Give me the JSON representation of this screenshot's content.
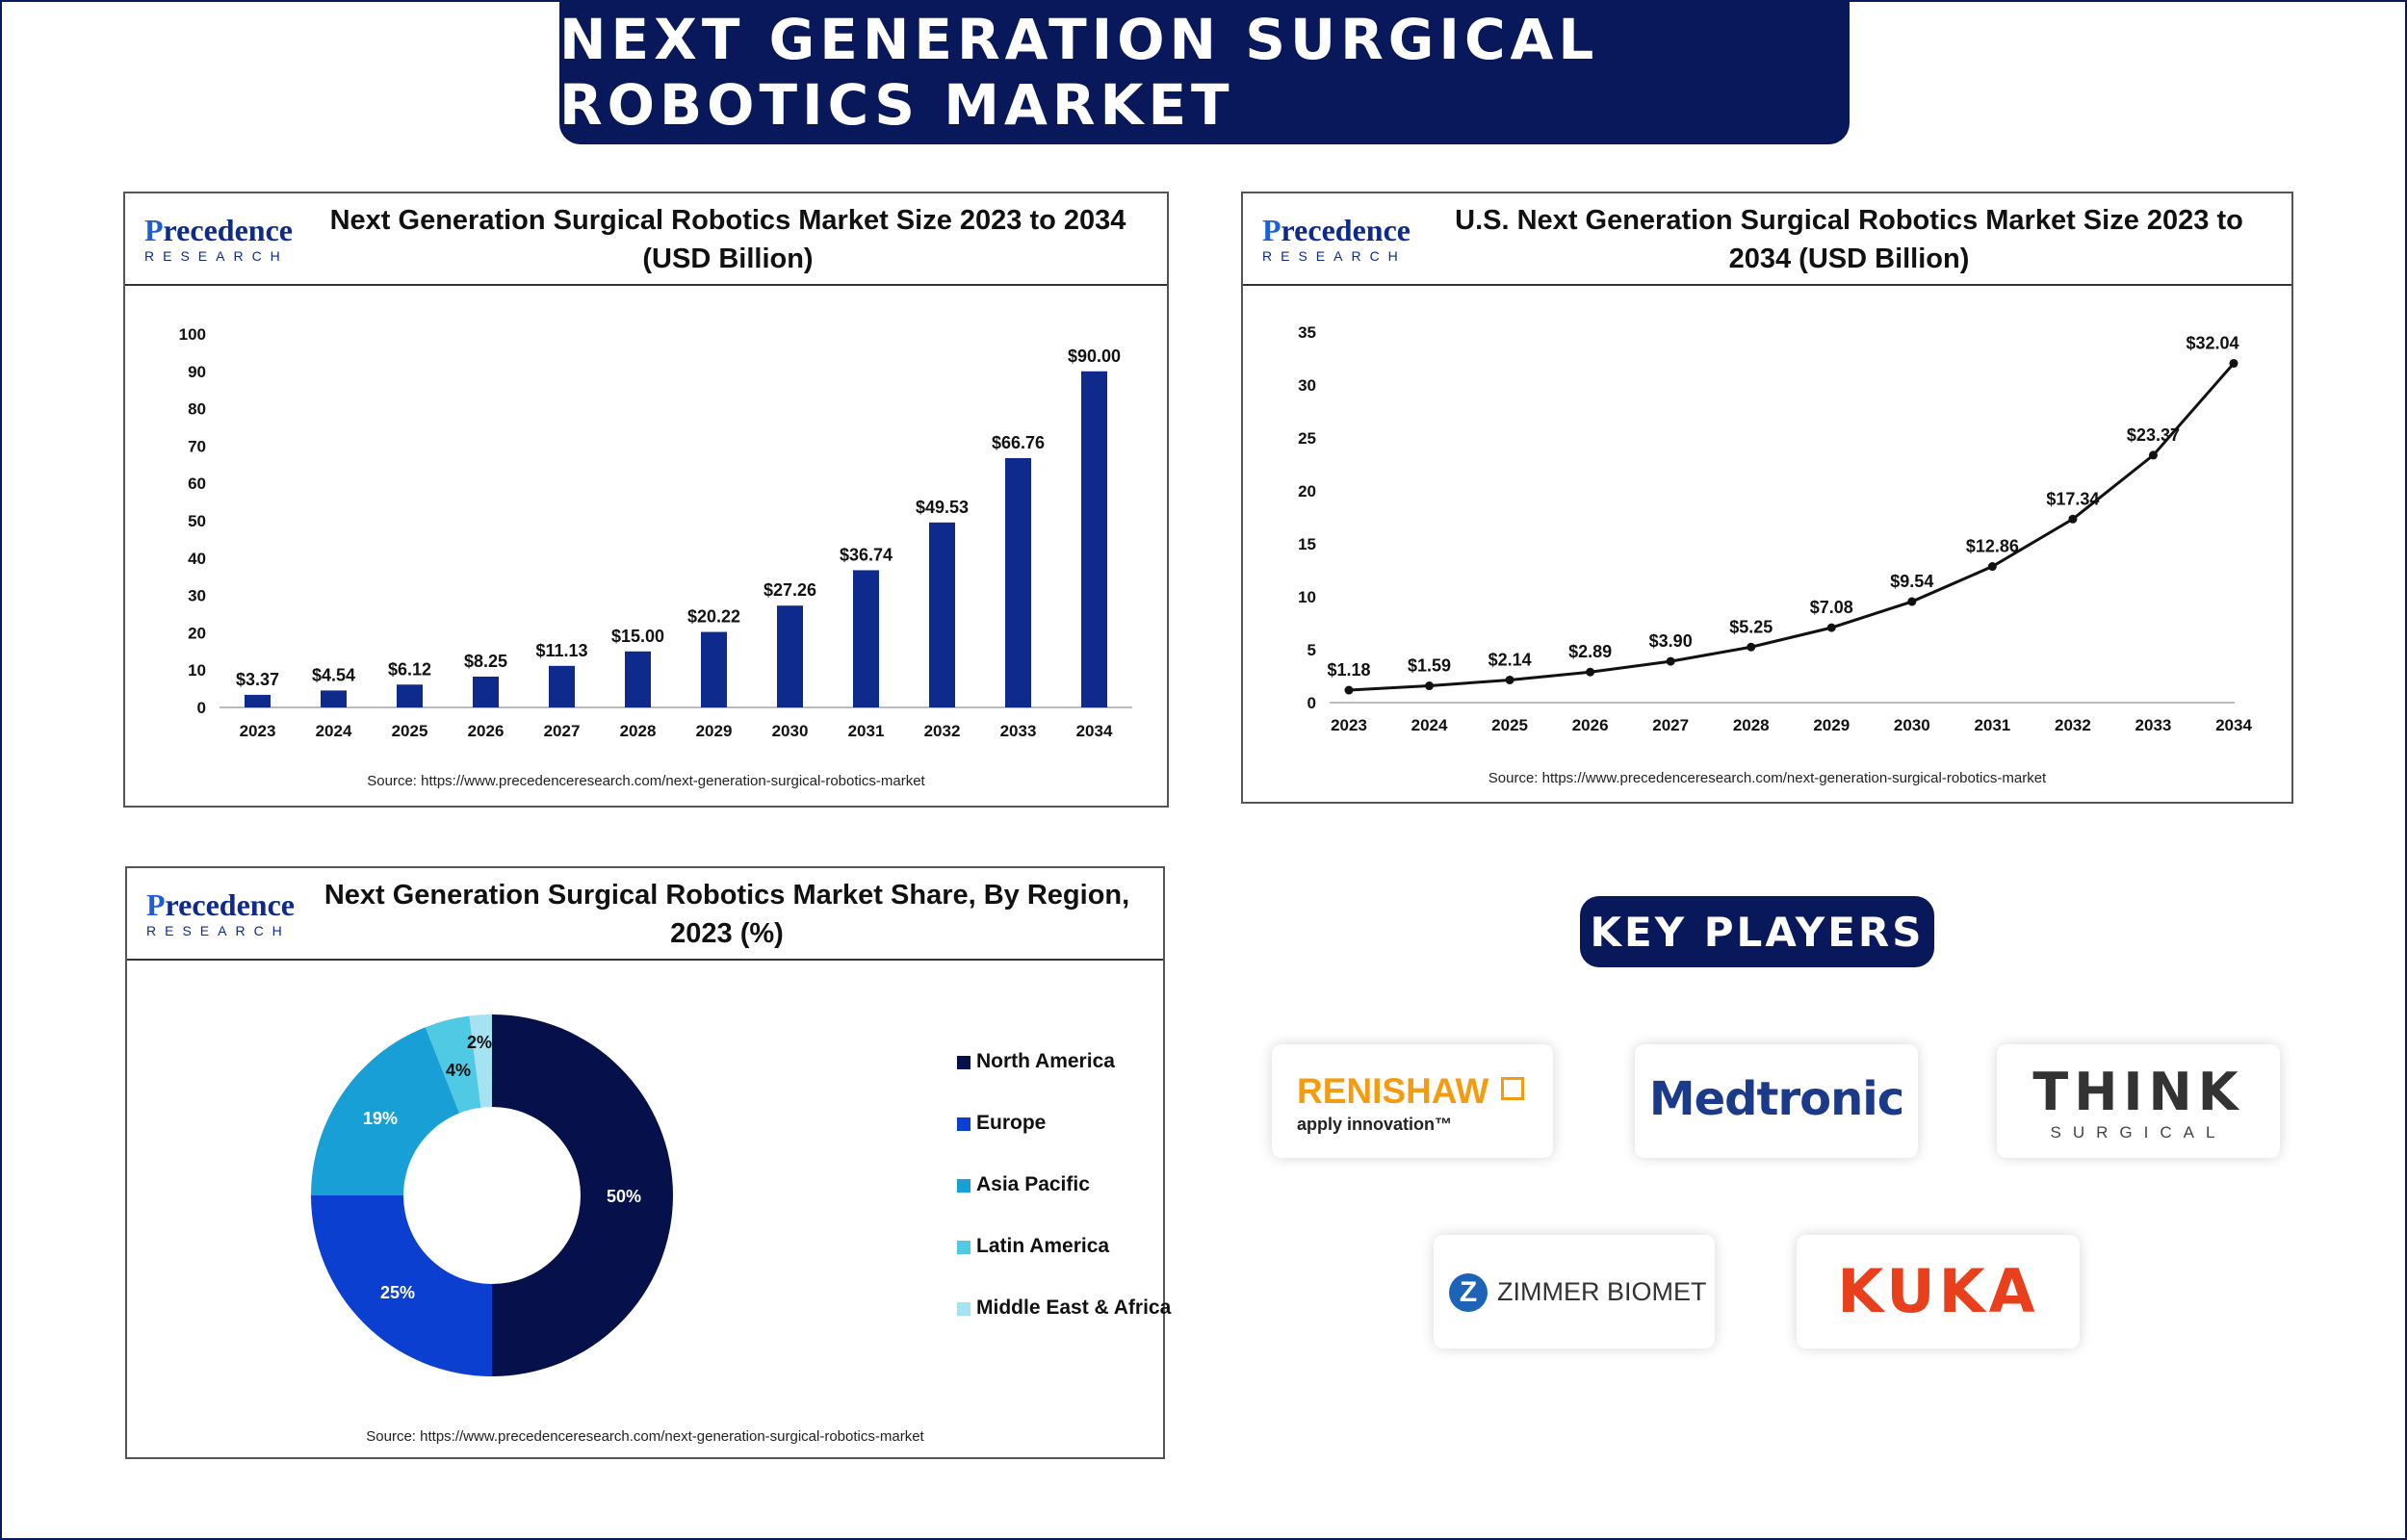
{
  "main_title": "NEXT GENERATION SURGICAL ROBOTICS MARKET",
  "logo": {
    "top": "recedence",
    "top_first": "P",
    "bottom": "RESEARCH"
  },
  "panels": {
    "bar": {
      "title": "Next Generation Surgical Robotics Market Size 2023 to 2034 (USD Billion)",
      "source": "Source: https://www.precedenceresearch.com/next-generation-surgical-robotics-market"
    },
    "line": {
      "title": "U.S. Next Generation Surgical Robotics Market Size 2023 to 2034 (USD Billion)",
      "source": "Source: https://www.precedenceresearch.com/next-generation-surgical-robotics-market"
    },
    "donut": {
      "title": "Next Generation Surgical Robotics Market Share, By Region, 2023 (%)",
      "source": "Source: https://www.precedenceresearch.com/next-generation-surgical-robotics-market"
    }
  },
  "key_players": {
    "title": "KEY PLAYERS",
    "logos": [
      {
        "name": "RENISHAW",
        "tagline": "apply innovation™"
      },
      {
        "name": "Medtronic"
      },
      {
        "name": "THINK",
        "sub": "SURGICAL"
      },
      {
        "name": "ZIMMER BIOMET"
      },
      {
        "name": "KUKA"
      }
    ]
  },
  "colors": {
    "navy": "#08185a",
    "bar": "#0d2a8c",
    "line": "#111111"
  },
  "chart_data": [
    {
      "type": "bar",
      "title": "Next Generation Surgical Robotics Market Size 2023 to 2034 (USD Billion)",
      "categories": [
        "2023",
        "2024",
        "2025",
        "2026",
        "2027",
        "2028",
        "2029",
        "2030",
        "2031",
        "2032",
        "2033",
        "2034"
      ],
      "values": [
        3.37,
        4.54,
        6.12,
        8.25,
        11.13,
        15.0,
        20.22,
        27.26,
        36.74,
        49.53,
        66.76,
        90.0
      ],
      "labels": [
        "$3.37",
        "$4.54",
        "$6.12",
        "$8.25",
        "$11.13",
        "$15.00",
        "$20.22",
        "$27.26",
        "$36.74",
        "$49.53",
        "$66.76",
        "$90.00"
      ],
      "ylim": [
        0,
        100
      ],
      "yticks": [
        0,
        10,
        20,
        30,
        40,
        50,
        60,
        70,
        80,
        90,
        100
      ],
      "grid": false
    },
    {
      "type": "line",
      "title": "U.S. Next Generation Surgical Robotics Market Size 2023 to 2034 (USD Billion)",
      "categories": [
        "2023",
        "2024",
        "2025",
        "2026",
        "2027",
        "2028",
        "2029",
        "2030",
        "2031",
        "2032",
        "2033",
        "2034"
      ],
      "values": [
        1.18,
        1.59,
        2.14,
        2.89,
        3.9,
        5.25,
        7.08,
        9.54,
        12.86,
        17.34,
        23.37,
        32.04
      ],
      "labels": [
        "$1.18",
        "$1.59",
        "$2.14",
        "$2.89",
        "$3.90",
        "$5.25",
        "$7.08",
        "$9.54",
        "$12.86",
        "$17.34",
        "$23.37",
        "$32.04"
      ],
      "ylim": [
        0,
        35
      ],
      "yticks": [
        0,
        5,
        10,
        15,
        20,
        25,
        30,
        35
      ],
      "grid": false
    },
    {
      "type": "pie",
      "subtype": "donut",
      "title": "Next Generation Surgical Robotics Market Share, By Region, 2023 (%)",
      "slices": [
        {
          "name": "North America",
          "value": 50,
          "label": "50%",
          "color": "#06104a"
        },
        {
          "name": "Europe",
          "value": 25,
          "label": "25%",
          "color": "#0b3fd0"
        },
        {
          "name": "Asia Pacific",
          "value": 19,
          "label": "19%",
          "color": "#18a0d6"
        },
        {
          "name": "Latin America",
          "value": 4,
          "label": "4%",
          "color": "#4fc9e4"
        },
        {
          "name": "Middle East & Africa",
          "value": 2,
          "label": "2%",
          "color": "#a6e3f2"
        }
      ],
      "legend_position": "right"
    }
  ]
}
